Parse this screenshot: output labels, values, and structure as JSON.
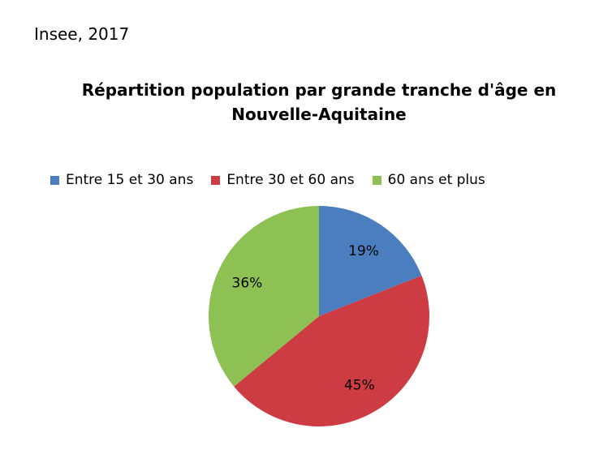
{
  "source": "Insee, 2017",
  "chart_data": {
    "type": "pie",
    "title": "Répartition population par grande tranche d'âge en Nouvelle-Aquitaine",
    "title_lines": [
      "Répartition population par grande tranche d'âge en",
      "Nouvelle-Aquitaine"
    ],
    "legend_position": "top",
    "categories": [
      "Entre 15 et 30 ans",
      "Entre 30 et 60 ans",
      "60 ans et plus"
    ],
    "values": [
      19,
      45,
      36
    ],
    "data_labels": [
      "19%",
      "45%",
      "36%"
    ],
    "colors": [
      "#4a7ebf",
      "#cd3b43",
      "#8dc153"
    ]
  }
}
